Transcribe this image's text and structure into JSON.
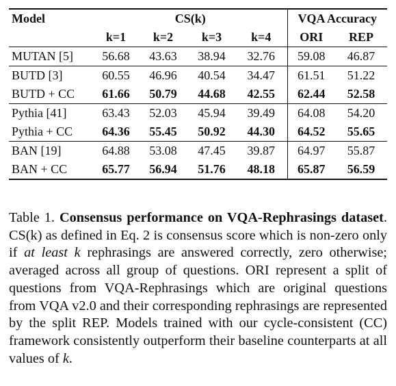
{
  "table": {
    "header": {
      "model": "Model",
      "cs_group": "CS(k)",
      "vqa_group": "VQA Accuracy",
      "cs_cols": [
        "k=1",
        "k=2",
        "k=3",
        "k=4"
      ],
      "vqa_cols": [
        "ORI",
        "REP"
      ]
    },
    "groups": [
      {
        "rows": [
          {
            "model": "MUTAN [5]",
            "values": [
              "56.68",
              "43.63",
              "38.94",
              "32.76",
              "59.08",
              "46.87"
            ],
            "bold": false
          }
        ]
      },
      {
        "rows": [
          {
            "model": "BUTD  [3]",
            "values": [
              "60.55",
              "46.96",
              "40.54",
              "34.47",
              "61.51",
              "51.22"
            ],
            "bold": false
          },
          {
            "model": "BUTD + CC",
            "values": [
              "61.66",
              "50.79",
              "44.68",
              "42.55",
              "62.44",
              "52.58"
            ],
            "bold": true
          }
        ]
      },
      {
        "rows": [
          {
            "model": "Pythia [41]",
            "values": [
              "63.43",
              "52.03",
              "45.94",
              "39.49",
              "64.08",
              "54.20"
            ],
            "bold": false
          },
          {
            "model": "Pythia + CC",
            "values": [
              "64.36",
              "55.45",
              "50.92",
              "44.30",
              "64.52",
              "55.65"
            ],
            "bold": true
          }
        ]
      },
      {
        "rows": [
          {
            "model": "BAN [19]",
            "values": [
              "64.88",
              "53.08",
              "47.45",
              "39.87",
              "64.97",
              "55.87"
            ],
            "bold": false
          },
          {
            "model": "BAN + CC",
            "values": [
              "65.77",
              "56.94",
              "51.76",
              "48.18",
              "65.87",
              "56.59"
            ],
            "bold": true
          }
        ]
      }
    ]
  },
  "caption": {
    "label": "Table 1.",
    "title": "Consensus performance on VQA-Rephrasings dataset",
    "title_end": ".",
    "part1": "CS(k) as defined in Eq. 2 is consensus score which is non-zero only if ",
    "emph1": "at least k",
    "part2": " rephrasings are answered correctly, zero other­wise; averaged across all group of questions. ORI represent a split of questions from VQA-Rephrasings which are original questions from VQA v2.0 and their corresponding rephrasings are repre­sented by the split REP. Models trained with our cycle-consistent (CC) framework consistently outperform their baseline counter­parts at all values of ",
    "emph2": "k",
    "part3": "."
  }
}
